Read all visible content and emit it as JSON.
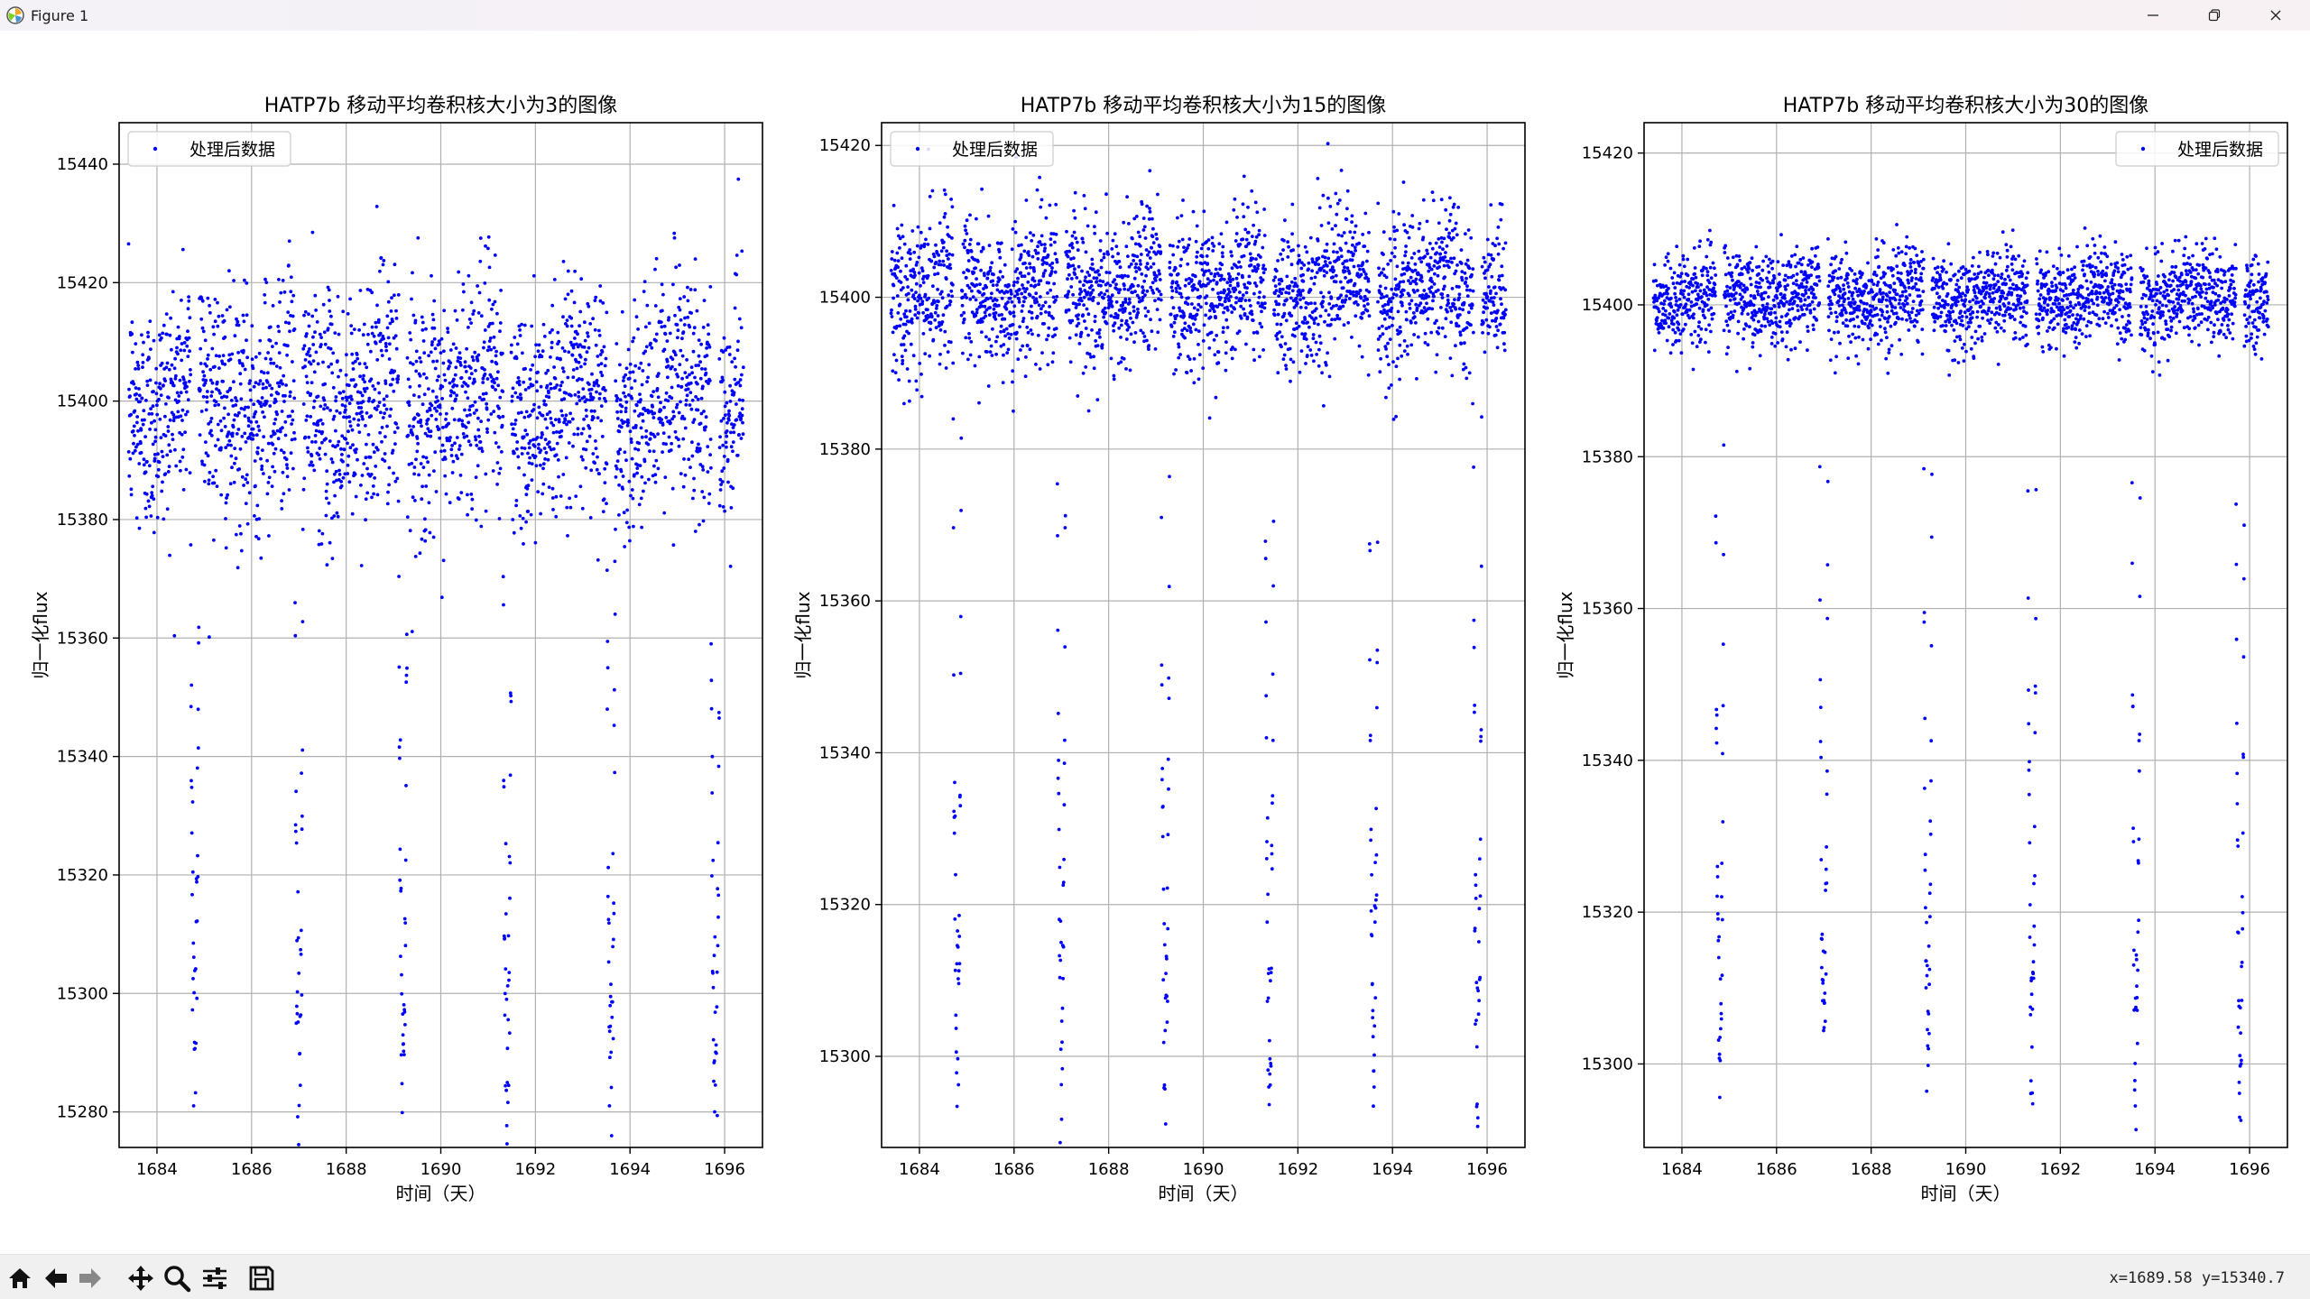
{
  "window": {
    "title": "Figure 1",
    "icon": "matplotlib-icon",
    "controls": [
      "minimize-icon",
      "restore-icon",
      "close-icon"
    ]
  },
  "toolbar": {
    "tools": [
      "home-icon",
      "back-icon",
      "forward-icon",
      "pan-icon",
      "zoom-icon",
      "configure-icon",
      "save-icon"
    ],
    "coords": "x=1689.58  y=15340.7"
  },
  "colors": {
    "points": "#0000ff",
    "grid": "#b0b0b0",
    "axes": "#000000"
  },
  "chart_data": [
    {
      "type": "scatter",
      "title": "HATP7b 移动平均卷积核大小为3的图像",
      "xlabel": "时间（天）",
      "ylabel": "归一化flux",
      "xlim": [
        1683.2,
        1696.8
      ],
      "ylim": [
        15274,
        15447
      ],
      "xticks": [
        1684,
        1686,
        1688,
        1690,
        1692,
        1694,
        1696
      ],
      "yticks": [
        15280,
        15300,
        15320,
        15340,
        15360,
        15380,
        15400,
        15420,
        15440
      ],
      "grid": true,
      "legend": {
        "position": "upper-left",
        "entries": [
          "处理后数据"
        ]
      },
      "series": [
        {
          "name": "处理后数据",
          "color": "#0000ff",
          "baseline": 15400,
          "scatter_sd": 10,
          "transit_centers": [
            1684.8,
            1687.0,
            1689.2,
            1691.4,
            1693.6,
            1695.8
          ],
          "transit_depth_min": 15285,
          "x_range": [
            1683.4,
            1696.4
          ]
        }
      ]
    },
    {
      "type": "scatter",
      "title": "HATP7b 移动平均卷积核大小为15的图像",
      "xlabel": "时间（天）",
      "ylabel": "归一化flux",
      "xlim": [
        1683.2,
        1696.8
      ],
      "ylim": [
        15288,
        15423
      ],
      "xticks": [
        1684,
        1686,
        1688,
        1690,
        1692,
        1694,
        1696
      ],
      "yticks": [
        15300,
        15320,
        15340,
        15360,
        15380,
        15400,
        15420
      ],
      "grid": true,
      "legend": {
        "position": "upper-left",
        "entries": [
          "处理后数据"
        ]
      },
      "series": [
        {
          "name": "处理后数据",
          "color": "#0000ff",
          "baseline": 15401,
          "scatter_sd": 5,
          "transit_centers": [
            1684.8,
            1687.0,
            1689.2,
            1691.4,
            1693.6,
            1695.8
          ],
          "transit_depth_min": 15298,
          "x_range": [
            1683.4,
            1696.4
          ]
        }
      ]
    },
    {
      "type": "scatter",
      "title": "HATP7b 移动平均卷积核大小为30的图像",
      "xlabel": "时间（天）",
      "ylabel": "归一化flux",
      "xlim": [
        1683.2,
        1696.8
      ],
      "ylim": [
        15289,
        15424
      ],
      "xticks": [
        1684,
        1686,
        1688,
        1690,
        1692,
        1694,
        1696
      ],
      "yticks": [
        15300,
        15320,
        15340,
        15360,
        15380,
        15400,
        15420
      ],
      "grid": true,
      "legend": {
        "position": "upper-right",
        "entries": [
          "处理后数据"
        ]
      },
      "series": [
        {
          "name": "处理后数据",
          "color": "#0000ff",
          "baseline": 15401,
          "scatter_sd": 3,
          "transit_centers": [
            1684.8,
            1687.0,
            1689.2,
            1691.4,
            1693.6,
            1695.8
          ],
          "transit_depth_min": 15298,
          "x_range": [
            1683.4,
            1696.4
          ]
        }
      ]
    }
  ]
}
